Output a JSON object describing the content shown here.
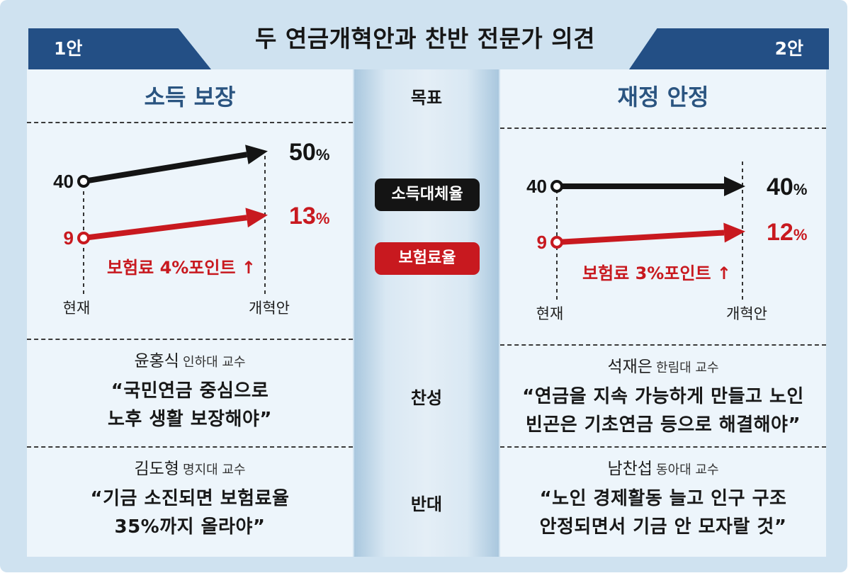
{
  "title": "두 연금개혁안과 찬반 전문가 의견",
  "colors": {
    "accent_blue": "#234f85",
    "income_black": "#141414",
    "premium_red": "#c8191f",
    "panel_title": "#2a5480"
  },
  "middle": {
    "goal_label": "목표",
    "pill_income": "소득대체율",
    "pill_premium": "보험료율",
    "pro_label": "찬성",
    "con_label": "반대"
  },
  "plan1": {
    "tab": "1안",
    "goal": "소득 보장",
    "annotation": "보험료 4%포인트 ↑",
    "pro": {
      "name": "윤홍식",
      "affiliation": "인하대 교수",
      "quote_line1": "“국민연금 중심으로",
      "quote_line2": "노후 생활 보장해야”"
    },
    "con": {
      "name": "김도형",
      "affiliation": "명지대 교수",
      "quote_line1": "“기금 소진되면 보험료율",
      "quote_line2": "35%까지 올라야”"
    }
  },
  "plan2": {
    "tab": "2안",
    "goal": "재정 안정",
    "annotation": "보험료 3%포인트 ↑",
    "pro": {
      "name": "석재은",
      "affiliation": "한림대 교수",
      "quote_line1": "“연금을 지속 가능하게 만들고 노인",
      "quote_line2": "빈곤은 기초연금 등으로 해결해야”"
    },
    "con": {
      "name": "남찬섭",
      "affiliation": "동아대 교수",
      "quote_line1": "“노인 경제활동 늘고 인구 구조",
      "quote_line2": "안정되면서 기금 안 모자랄 것”"
    }
  },
  "chart_data": [
    {
      "type": "line",
      "categories": [
        "현재",
        "개혁안"
      ],
      "series": [
        {
          "name": "소득대체율",
          "values": [
            40,
            50
          ],
          "start_label": "40",
          "end_label": "50",
          "unit": "%",
          "color": "#141414"
        },
        {
          "name": "보험료율",
          "values": [
            9,
            13
          ],
          "start_label": "9",
          "end_label": "13",
          "unit": "%",
          "color": "#c8191f"
        }
      ]
    },
    {
      "type": "line",
      "categories": [
        "현재",
        "개혁안"
      ],
      "series": [
        {
          "name": "소득대체율",
          "values": [
            40,
            40
          ],
          "start_label": "40",
          "end_label": "40",
          "unit": "%",
          "color": "#141414"
        },
        {
          "name": "보험료율",
          "values": [
            9,
            12
          ],
          "start_label": "9",
          "end_label": "12",
          "unit": "%",
          "color": "#c8191f"
        }
      ]
    }
  ]
}
